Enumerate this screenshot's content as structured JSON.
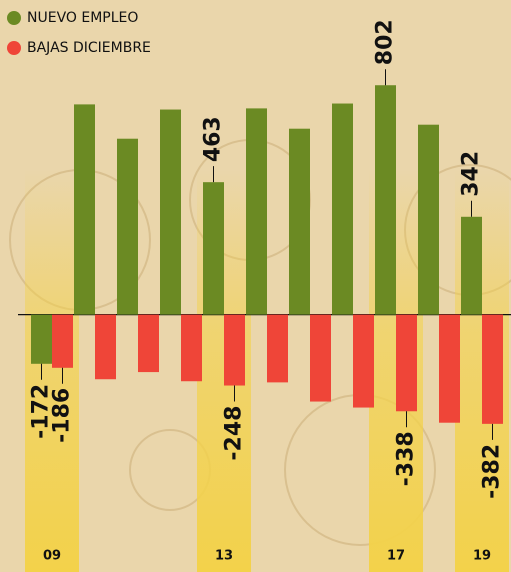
{
  "chart_data": {
    "type": "bar",
    "categories": [
      "09",
      null,
      null,
      null,
      "13",
      null,
      null,
      null,
      "17",
      null,
      "19"
    ],
    "series": [
      {
        "name": "NUEVO EMPLEO",
        "color": "#6b8a23",
        "values": [
          -172,
          735,
          615,
          717,
          463,
          721,
          650,
          738,
          802,
          664,
          342
        ],
        "value_labels": [
          "-172",
          null,
          null,
          null,
          "463",
          null,
          null,
          null,
          "802",
          null,
          "342"
        ]
      },
      {
        "name": "BAJAS DICIEMBRE",
        "color": "#ef4538",
        "values": [
          -186,
          -226,
          -201,
          -233,
          -248,
          -237,
          -304,
          -325,
          -338,
          -378,
          -382
        ],
        "value_labels": [
          "-186",
          null,
          null,
          null,
          "-248",
          null,
          null,
          null,
          "-338",
          null,
          "-382"
        ]
      }
    ],
    "ylim": [
      -900,
      1100
    ]
  }
}
